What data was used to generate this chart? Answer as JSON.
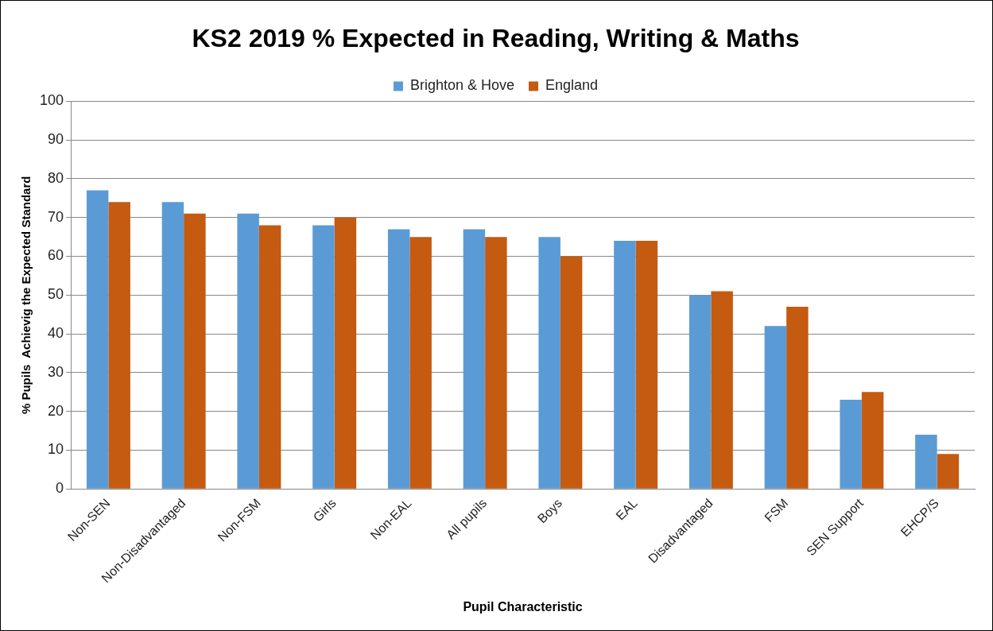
{
  "chart_data": {
    "type": "bar",
    "title": "KS2 2019 % Expected in Reading, Writing & Maths",
    "xlabel": "Pupil Characteristic",
    "ylabel": "% Pupils  Achievig the Expected Standard",
    "categories": [
      "Non-SEN",
      "Non-Disadvantaged",
      "Non-FSM",
      "Girls",
      "Non-EAL",
      "All pupils",
      "Boys",
      "EAL",
      "Disadvantaged",
      "FSM",
      "SEN Support",
      "EHCP/S"
    ],
    "series": [
      {
        "name": "Brighton & Hove",
        "color": "#5b9bd5",
        "values": [
          77,
          74,
          71,
          68,
          67,
          67,
          65,
          64,
          50,
          42,
          23,
          14
        ]
      },
      {
        "name": "England",
        "color": "#c55a11",
        "values": [
          74,
          71,
          68,
          70,
          65,
          65,
          60,
          64,
          51,
          47,
          25,
          9
        ]
      }
    ],
    "ylim": [
      0,
      100
    ],
    "yticks": [
      0,
      10,
      20,
      30,
      40,
      50,
      60,
      70,
      80,
      90,
      100
    ],
    "grid": "y",
    "legend": "top"
  }
}
